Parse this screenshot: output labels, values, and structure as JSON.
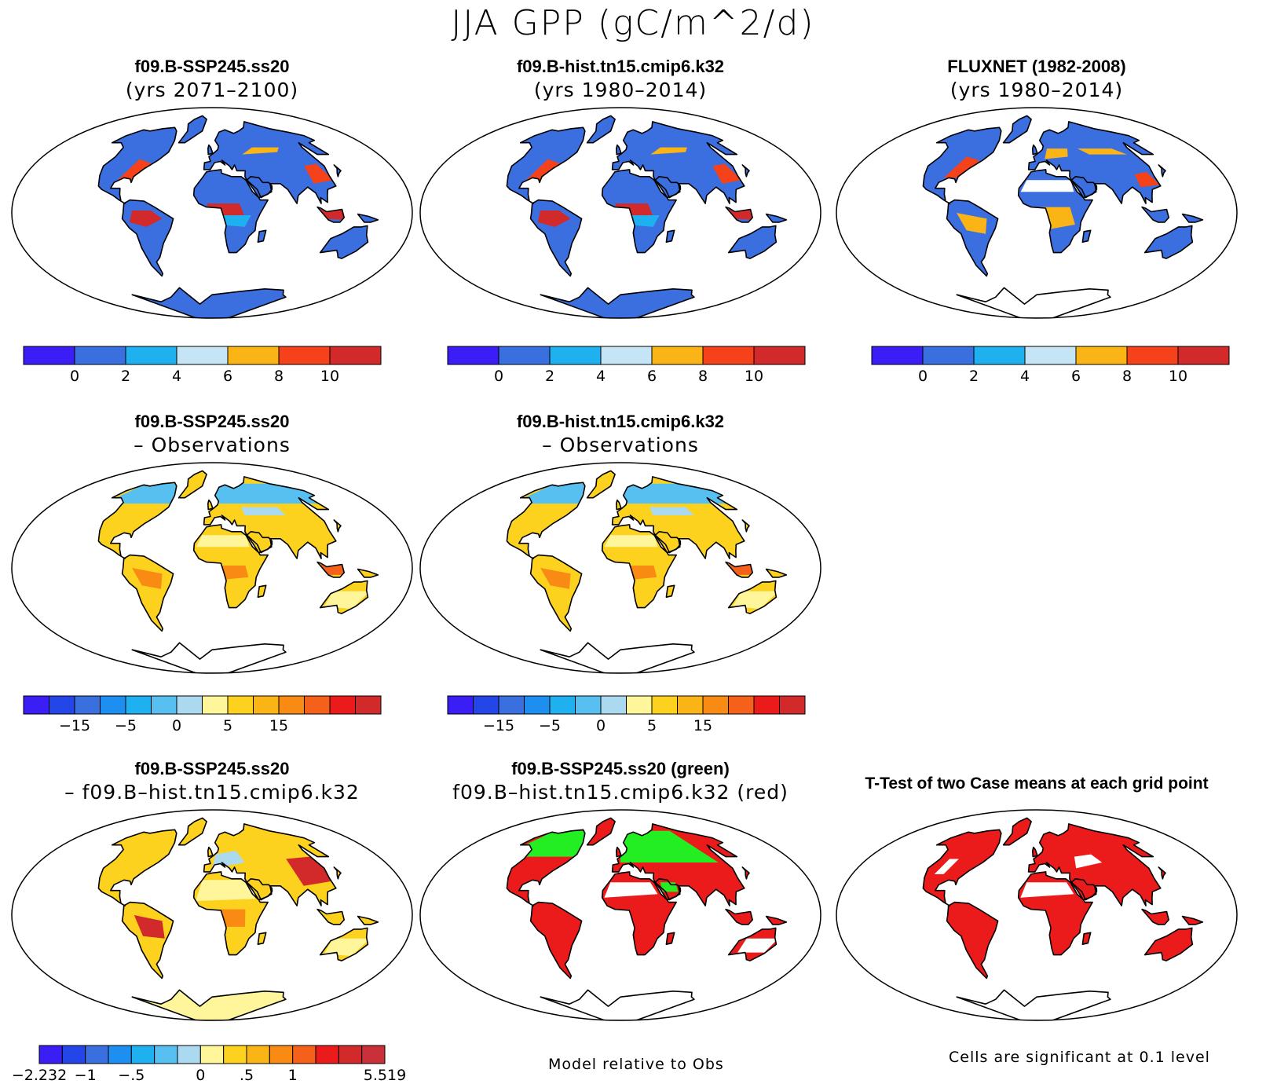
{
  "title": "JJA GPP (gC/m^2/d)",
  "panels": [
    {
      "id": "p1",
      "title": "f09.B-SSP245.ss20",
      "subtitle": "(yrs 2071–2100)",
      "style": "abs",
      "antarctica": "#3b6fe0"
    },
    {
      "id": "p2",
      "title": "f09.B-hist.tn15.cmip6.k32",
      "subtitle": "(yrs 1980–2014)",
      "style": "abs",
      "antarctica": "#3b6fe0"
    },
    {
      "id": "p3",
      "title": "FLUXNET (1982-2008)",
      "subtitle": "(yrs 1980–2014)",
      "style": "obs",
      "antarctica": "#ffffff"
    },
    {
      "id": "p4",
      "title": "f09.B-SSP245.ss20",
      "subtitle": "– Observations",
      "style": "diffobs",
      "antarctica": "#ffffff"
    },
    {
      "id": "p5",
      "title": "f09.B-hist.tn15.cmip6.k32",
      "subtitle": "– Observations",
      "style": "diffobs",
      "antarctica": "#ffffff"
    },
    {
      "id": "p6",
      "title": "f09.B-SSP245.ss20",
      "subtitle": "– f09.B–hist.tn15.cmip6.k32",
      "style": "diffcase",
      "antarctica": "#fff59a"
    },
    {
      "id": "p7",
      "title": "f09.B-SSP245.ss20 (green)",
      "subtitle": "f09.B–hist.tn15.cmip6.k32 (red)",
      "style": "compare",
      "antarctica": "#ffffff"
    },
    {
      "id": "p8",
      "title": "T-Test of two Case means at each grid point",
      "subtitle": "",
      "style": "ttest",
      "antarctica": "#ffffff"
    }
  ],
  "colorbars": {
    "abs": {
      "colors": [
        "#3a1ef5",
        "#3a6fe0",
        "#1fb0f0",
        "#c5e4f5",
        "#fbb416",
        "#f5421a",
        "#d22a2a"
      ],
      "labels": [
        "0",
        "2",
        "4",
        "6",
        "8",
        "10"
      ]
    },
    "diffobs": {
      "colors": [
        "#3a1ef5",
        "#2446e8",
        "#3a6fe0",
        "#1c8ff0",
        "#1fb0f0",
        "#58c0f0",
        "#abd9f0",
        "#fff59a",
        "#fcd21e",
        "#fbb416",
        "#f98a14",
        "#f5601a",
        "#ec1b1b",
        "#d22a2a"
      ],
      "labels": [
        "−15",
        "−5",
        "0",
        "5",
        "15"
      ]
    },
    "diffcase": {
      "colors": [
        "#3a1ef5",
        "#2446e8",
        "#3a6fe0",
        "#1c8ff0",
        "#1fb0f0",
        "#58c0f0",
        "#abd9f0",
        "#fff59a",
        "#fcd21e",
        "#fbb416",
        "#f98a14",
        "#f5601a",
        "#ec1b1b",
        "#d22a2a",
        "#c9303a"
      ],
      "labels": [
        "−2.232",
        "−1",
        "−.5",
        "0",
        ".5",
        "1",
        "5.519"
      ]
    }
  },
  "footnotes": {
    "compare": "Model relative to Obs",
    "ttest": "Cells are significant at 0.1 level"
  }
}
